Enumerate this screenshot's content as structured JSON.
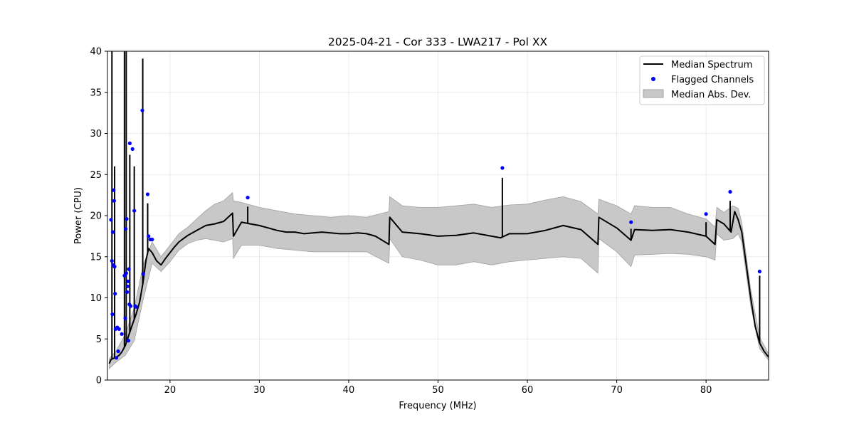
{
  "chart_data": {
    "type": "line",
    "title": "2025-04-21 - Cor 333 - LWA217 - Pol XX",
    "xlabel": "Frequency (MHz)",
    "ylabel": "Power (CPU)",
    "xlim": [
      13,
      87
    ],
    "ylim": [
      0,
      40
    ],
    "xticks": [
      20,
      30,
      40,
      50,
      60,
      70,
      80
    ],
    "yticks": [
      0,
      5,
      10,
      15,
      20,
      25,
      30,
      35,
      40
    ],
    "grid": true,
    "legend_position": "top-right",
    "colors": {
      "median": "#000000",
      "flagged": "#0000ff",
      "mad_fill": "#c8c8c8",
      "mad_edge": "#a0a0a0"
    },
    "legend": [
      {
        "label": "Median Spectrum",
        "kind": "line"
      },
      {
        "label": "Flagged Channels",
        "kind": "marker"
      },
      {
        "label": "Median Abs. Dev.",
        "kind": "patch"
      }
    ],
    "series": [
      {
        "name": "Median Spectrum",
        "x": [
          13.2,
          13.4,
          13.6,
          13.8,
          14.0,
          14.3,
          14.6,
          15.0,
          15.4,
          15.8,
          16.2,
          16.6,
          17.0,
          17.3,
          17.6,
          18.0,
          18.5,
          19.0,
          19.5,
          20.0,
          20.5,
          21.0,
          21.5,
          22.0,
          23.0,
          24.0,
          25.0,
          26.0,
          27.0,
          27.1,
          28.0,
          29.0,
          30.0,
          31.0,
          32.0,
          33.0,
          34.0,
          35.0,
          36.0,
          37.0,
          38.0,
          39.0,
          40.0,
          41.0,
          42.0,
          43.0,
          44.5,
          44.6,
          46.0,
          48.0,
          50.0,
          52.0,
          54.0,
          56.0,
          57.0,
          58.0,
          60.0,
          62.0,
          64.0,
          66.0,
          67.9,
          68.0,
          70.0,
          71.6,
          72.0,
          74.0,
          76.0,
          78.0,
          80.0,
          81.0,
          81.2,
          82.0,
          82.8,
          83.2,
          83.6,
          84.0,
          84.5,
          85.0,
          85.5,
          86.0,
          86.5,
          87.0
        ],
        "values": [
          2.0,
          2.5,
          2.6,
          2.7,
          2.8,
          3.0,
          3.4,
          4.2,
          5.5,
          6.8,
          8.0,
          9.5,
          12.0,
          14.5,
          16.0,
          15.5,
          14.5,
          14.0,
          14.8,
          15.5,
          16.2,
          16.8,
          17.2,
          17.6,
          18.2,
          18.8,
          19.0,
          19.3,
          20.3,
          17.5,
          19.2,
          19.0,
          18.8,
          18.5,
          18.2,
          18.0,
          18.0,
          17.8,
          17.9,
          18.0,
          17.9,
          17.8,
          17.8,
          17.9,
          17.8,
          17.5,
          16.5,
          19.8,
          18.0,
          17.8,
          17.5,
          17.6,
          17.9,
          17.5,
          17.3,
          17.8,
          17.8,
          18.2,
          18.8,
          18.3,
          16.5,
          19.8,
          18.5,
          17.0,
          18.3,
          18.2,
          18.3,
          18.0,
          17.5,
          16.5,
          19.5,
          19.0,
          18.0,
          20.5,
          19.5,
          18.0,
          14.0,
          10.0,
          6.5,
          4.5,
          3.5,
          2.8
        ]
      },
      {
        "name": "Median Abs. Dev.",
        "x": [
          13.2,
          14.0,
          15.0,
          16.0,
          17.0,
          18.0,
          19.0,
          20.0,
          21.0,
          22.0,
          23.0,
          24.0,
          25.0,
          26.0,
          27.0,
          27.1,
          28.0,
          30.0,
          32.0,
          34.0,
          36.0,
          38.0,
          40.0,
          42.0,
          44.5,
          44.6,
          46.0,
          48.0,
          50.0,
          52.0,
          54.0,
          56.0,
          58.0,
          60.0,
          62.0,
          64.0,
          66.0,
          67.9,
          68.0,
          70.0,
          71.6,
          72.0,
          74.0,
          76.0,
          78.0,
          80.0,
          81.0,
          81.2,
          82.0,
          83.0,
          83.6,
          84.0,
          85.0,
          86.0,
          87.0
        ],
        "upper": [
          2.6,
          3.6,
          5.6,
          8.8,
          14.0,
          16.8,
          15.0,
          16.4,
          17.8,
          18.6,
          19.6,
          20.6,
          21.4,
          21.8,
          22.8,
          21.8,
          21.6,
          21.0,
          20.6,
          20.2,
          20.0,
          19.8,
          20.0,
          19.8,
          20.5,
          22.3,
          21.2,
          21.0,
          21.0,
          21.2,
          21.4,
          21.0,
          21.3,
          21.4,
          21.9,
          22.3,
          21.7,
          20.2,
          22.0,
          21.2,
          20.2,
          21.2,
          21.0,
          21.0,
          20.2,
          19.6,
          18.6,
          21.0,
          20.4,
          21.2,
          20.9,
          19.2,
          11.0,
          5.2,
          3.2
        ],
        "lower": [
          1.4,
          2.2,
          3.0,
          4.8,
          9.8,
          14.2,
          13.2,
          14.4,
          15.8,
          16.6,
          17.0,
          17.2,
          17.0,
          16.8,
          17.2,
          14.8,
          16.4,
          16.4,
          16.0,
          15.8,
          15.6,
          15.6,
          15.6,
          15.6,
          14.2,
          17.2,
          15.0,
          14.6,
          14.0,
          14.0,
          14.4,
          14.0,
          14.4,
          14.6,
          14.8,
          15.0,
          14.8,
          13.0,
          17.2,
          15.6,
          13.8,
          15.2,
          15.3,
          15.4,
          15.3,
          15.0,
          14.6,
          17.8,
          17.0,
          17.2,
          17.8,
          16.8,
          9.0,
          3.8,
          2.4
        ]
      },
      {
        "name": "Flagged Channels",
        "x": [
          13.4,
          13.5,
          13.55,
          13.6,
          13.65,
          13.7,
          13.75,
          13.8,
          13.85,
          13.9,
          14.0,
          14.1,
          14.2,
          14.3,
          14.6,
          14.9,
          15.0,
          15.05,
          15.1,
          15.15,
          15.2,
          15.25,
          15.3,
          15.35,
          15.4,
          15.45,
          15.5,
          15.6,
          15.8,
          16.0,
          16.1,
          16.2,
          16.9,
          17.0,
          17.5,
          17.6,
          17.8,
          18.0,
          28.7,
          57.2,
          71.6,
          80.0,
          82.7,
          86.0
        ],
        "values": [
          19.5,
          14.5,
          8.0,
          18.0,
          14.0,
          23.1,
          21.8,
          13.8,
          10.5,
          6.2,
          2.7,
          6.4,
          3.5,
          6.2,
          5.6,
          12.7,
          7.5,
          18.4,
          13.0,
          19.6,
          10.7,
          11.4,
          12.0,
          4.8,
          13.5,
          9.2,
          28.8,
          9.0,
          28.1,
          20.6,
          9.0,
          8.9,
          32.8,
          12.9,
          22.6,
          17.5,
          17.1,
          17.1,
          22.2,
          25.8,
          19.2,
          20.2,
          22.9,
          13.2
        ]
      }
    ],
    "spikes": [
      {
        "x": 13.5,
        "peak": 40.0
      },
      {
        "x": 13.8,
        "peak": 26.0
      },
      {
        "x": 14.9,
        "peak": 40.0
      },
      {
        "x": 15.1,
        "peak": 40.0
      },
      {
        "x": 15.5,
        "peak": 27.4
      },
      {
        "x": 16.0,
        "peak": 26.0
      },
      {
        "x": 16.95,
        "peak": 39.1
      },
      {
        "x": 17.5,
        "peak": 21.5
      },
      {
        "x": 28.7,
        "peak": 21.1
      },
      {
        "x": 57.2,
        "peak": 24.6
      },
      {
        "x": 71.6,
        "peak": 18.4
      },
      {
        "x": 80.0,
        "peak": 19.2
      },
      {
        "x": 82.7,
        "peak": 21.8
      },
      {
        "x": 86.0,
        "peak": 12.7
      }
    ]
  }
}
